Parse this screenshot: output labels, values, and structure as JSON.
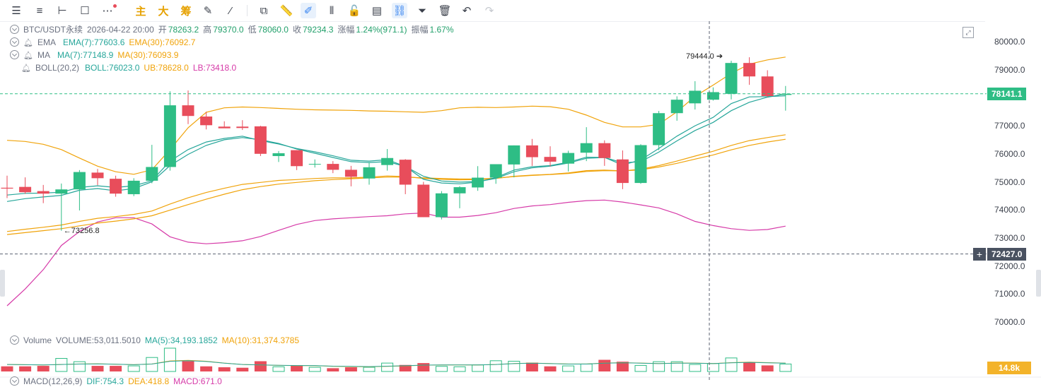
{
  "toolbar": {
    "cn1": "主",
    "cn2": "大",
    "cn3": "筹"
  },
  "legend": {
    "symbol": "BTC/USDT永续",
    "time": "2026-04-22 20:00",
    "open_label": "开",
    "open": "78263.2",
    "high_label": "高",
    "high": "79370.0",
    "low_label": "低",
    "low": "78060.0",
    "close_label": "收",
    "close": "79234.3",
    "change_label": "涨幅",
    "change": "1.24%(971.1)",
    "amp_label": "振幅",
    "amp": "1.67%",
    "ema_name": "EMA",
    "ema7": "EMA(7):77603.6",
    "ema30": "EMA(30):76092.7",
    "ma_name": "MA",
    "ma7": "MA(7):77148.9",
    "ma30": "MA(30):76093.9",
    "boll_name": "BOLL(20,2)",
    "boll_mid": "BOLL:76023.0",
    "boll_ub": "UB:78628.0",
    "boll_lb": "LB:73418.0",
    "vol_name": "Volume",
    "vol": "VOLUME:53,011.5010",
    "vol_ma5": "MA(5):34,193.1852",
    "vol_ma10": "MA(10):31,374.3785",
    "macd_name": "MACD(12,26,9)",
    "dif": "DIF:754.3",
    "dea": "DEA:418.8",
    "macd": "MACD:671.0"
  },
  "price_axis": [
    "80000.0",
    "79000.0",
    "78000.0",
    "77000.0",
    "76000.0",
    "75000.0",
    "74000.0",
    "73000.0",
    "72000.0",
    "71000.0",
    "70000.0"
  ],
  "annotations": {
    "high_marker": "79444.0",
    "low_marker": "73256.8"
  },
  "tags": {
    "last_price": "78141.1",
    "cursor_price": "72427.0",
    "cursor_plus": "+",
    "volume_tag": "14.8k"
  },
  "colors": {
    "up": "#2ebd85",
    "down": "#e84d5b",
    "ema7": "#26a69a",
    "ema30": "#f0a30a",
    "boll_lb": "#d63aa8",
    "accent": "#2f7ff0"
  },
  "chart_data": {
    "type": "candlestick",
    "interval": "4h",
    "candles": [
      {
        "o": 74790,
        "h": 75220,
        "l": 74420,
        "c": 74760
      },
      {
        "o": 74820,
        "h": 75160,
        "l": 74570,
        "c": 74630
      },
      {
        "o": 74670,
        "h": 74890,
        "l": 74240,
        "c": 74580
      },
      {
        "o": 74580,
        "h": 74940,
        "l": 73257,
        "c": 74730
      },
      {
        "o": 74730,
        "h": 75420,
        "l": 73980,
        "c": 75350
      },
      {
        "o": 75330,
        "h": 75460,
        "l": 74880,
        "c": 75130
      },
      {
        "o": 75110,
        "h": 75220,
        "l": 74470,
        "c": 74580
      },
      {
        "o": 74560,
        "h": 75130,
        "l": 74490,
        "c": 75040
      },
      {
        "o": 75040,
        "h": 76320,
        "l": 74950,
        "c": 75530
      },
      {
        "o": 75530,
        "h": 78230,
        "l": 75400,
        "c": 77730
      },
      {
        "o": 77730,
        "h": 78260,
        "l": 77060,
        "c": 77350
      },
      {
        "o": 77330,
        "h": 77500,
        "l": 76870,
        "c": 77020
      },
      {
        "o": 76970,
        "h": 77160,
        "l": 76920,
        "c": 76910
      },
      {
        "o": 76970,
        "h": 77200,
        "l": 76850,
        "c": 76920
      },
      {
        "o": 76980,
        "h": 77000,
        "l": 75920,
        "c": 76000
      },
      {
        "o": 75920,
        "h": 76100,
        "l": 75710,
        "c": 76020
      },
      {
        "o": 76130,
        "h": 76130,
        "l": 75420,
        "c": 75560
      },
      {
        "o": 75620,
        "h": 75800,
        "l": 75510,
        "c": 75640
      },
      {
        "o": 75640,
        "h": 75740,
        "l": 75310,
        "c": 75430
      },
      {
        "o": 75430,
        "h": 75570,
        "l": 74840,
        "c": 75180
      },
      {
        "o": 75120,
        "h": 75700,
        "l": 74900,
        "c": 75520
      },
      {
        "o": 75600,
        "h": 76170,
        "l": 75400,
        "c": 75850
      },
      {
        "o": 75790,
        "h": 75810,
        "l": 74560,
        "c": 74900
      },
      {
        "o": 74900,
        "h": 75000,
        "l": 73740,
        "c": 73740
      },
      {
        "o": 73740,
        "h": 74670,
        "l": 73660,
        "c": 74590
      },
      {
        "o": 74590,
        "h": 74850,
        "l": 74060,
        "c": 74810
      },
      {
        "o": 74800,
        "h": 75560,
        "l": 74680,
        "c": 75150
      },
      {
        "o": 75150,
        "h": 75600,
        "l": 74930,
        "c": 75630
      },
      {
        "o": 75620,
        "h": 76300,
        "l": 75160,
        "c": 76300
      },
      {
        "o": 76300,
        "h": 76530,
        "l": 75570,
        "c": 75880
      },
      {
        "o": 75890,
        "h": 76270,
        "l": 75550,
        "c": 75720
      },
      {
        "o": 75650,
        "h": 76110,
        "l": 75370,
        "c": 76030
      },
      {
        "o": 76040,
        "h": 76950,
        "l": 75740,
        "c": 76380
      },
      {
        "o": 76380,
        "h": 76480,
        "l": 75570,
        "c": 75850
      },
      {
        "o": 75800,
        "h": 76120,
        "l": 74740,
        "c": 74960
      },
      {
        "o": 74960,
        "h": 76340,
        "l": 74930,
        "c": 76310
      },
      {
        "o": 76310,
        "h": 77530,
        "l": 76130,
        "c": 77450
      },
      {
        "o": 77450,
        "h": 78050,
        "l": 77180,
        "c": 77930
      },
      {
        "o": 77800,
        "h": 78590,
        "l": 77580,
        "c": 78250
      },
      {
        "o": 77930,
        "h": 78370,
        "l": 77900,
        "c": 78200
      },
      {
        "o": 78140,
        "h": 79320,
        "l": 77940,
        "c": 79240
      },
      {
        "o": 79240,
        "h": 79444,
        "l": 78460,
        "c": 78760
      },
      {
        "o": 78760,
        "h": 78980,
        "l": 78020,
        "c": 78060
      },
      {
        "o": 78100,
        "h": 78420,
        "l": 77540,
        "c": 78141
      }
    ],
    "ema7": [
      74530,
      74590,
      74600,
      74630,
      74800,
      74860,
      74800,
      74860,
      75040,
      75740,
      76150,
      76420,
      76550,
      76630,
      76470,
      76350,
      76190,
      76070,
      75930,
      75770,
      75740,
      75790,
      75550,
      75090,
      74960,
      74930,
      74990,
      75150,
      75420,
      75540,
      75580,
      75700,
      75880,
      75870,
      75600,
      75780,
      76190,
      76630,
      77000,
      77300,
      77790,
      78030,
      78040,
      78070
    ],
    "ema30": [
      73230,
      73310,
      73380,
      73460,
      73590,
      73700,
      73760,
      73840,
      73960,
      74210,
      74430,
      74620,
      74770,
      74910,
      74980,
      75050,
      75080,
      75120,
      75140,
      75140,
      75170,
      75210,
      75190,
      75120,
      75090,
      75070,
      75080,
      75120,
      75200,
      75240,
      75270,
      75320,
      75400,
      75420,
      75390,
      75450,
      75580,
      75740,
      75920,
      76090,
      76300,
      76470,
      76580,
      76680
    ],
    "ma7": [
      74300,
      74400,
      74460,
      74520,
      74700,
      74760,
      74680,
      74760,
      75000,
      75580,
      75980,
      76300,
      76500,
      76580,
      76500,
      76370,
      76170,
      76020,
      75870,
      75720,
      75690,
      75720,
      75550,
      75200,
      75030,
      74990,
      75010,
      75120,
      75360,
      75500,
      75560,
      75670,
      75840,
      75870,
      75680,
      75720,
      76060,
      76460,
      76830,
      77120,
      77540,
      77840,
      78020,
      78140
    ],
    "ma30": [
      73120,
      73190,
      73260,
      73330,
      73430,
      73530,
      73600,
      73680,
      73790,
      73990,
      74190,
      74380,
      74560,
      74720,
      74830,
      74920,
      74980,
      75040,
      75080,
      75110,
      75140,
      75170,
      75170,
      75140,
      75120,
      75100,
      75100,
      75130,
      75190,
      75230,
      75260,
      75300,
      75370,
      75400,
      75390,
      75430,
      75530,
      75660,
      75810,
      75960,
      76140,
      76300,
      76420,
      76520
    ],
    "boll_ub": [
      76480,
      76440,
      76340,
      76150,
      75850,
      75560,
      75360,
      75270,
      75430,
      76150,
      76930,
      77480,
      77640,
      77670,
      77650,
      77620,
      77590,
      77570,
      77560,
      77550,
      77530,
      77520,
      77500,
      77480,
      77540,
      77640,
      77660,
      77650,
      77670,
      77700,
      77680,
      77590,
      77380,
      77120,
      76960,
      76960,
      77050,
      77500,
      78050,
      78450,
      78870,
      79200,
      79350,
      79450
    ],
    "boll_lb": [
      70580,
      71180,
      71870,
      72730,
      73230,
      73570,
      73720,
      73720,
      73500,
      73040,
      72850,
      72790,
      72830,
      72900,
      73050,
      73270,
      73480,
      73620,
      73680,
      73720,
      73760,
      73790,
      73860,
      73890,
      73740,
      73740,
      73800,
      73900,
      74050,
      74140,
      74190,
      74270,
      74330,
      74350,
      74280,
      74180,
      74070,
      73860,
      73590,
      73440,
      73330,
      73270,
      73300,
      73420
    ],
    "volume": [
      {
        "v": 0.22,
        "up": false
      },
      {
        "v": 0.22,
        "up": false
      },
      {
        "v": 0.24,
        "up": false
      },
      {
        "v": 0.56,
        "up": true
      },
      {
        "v": 0.42,
        "up": true
      },
      {
        "v": 0.24,
        "up": false
      },
      {
        "v": 0.24,
        "up": false
      },
      {
        "v": 0.24,
        "up": true
      },
      {
        "v": 0.6,
        "up": true
      },
      {
        "v": 1.0,
        "up": true
      },
      {
        "v": 0.44,
        "up": false
      },
      {
        "v": 0.22,
        "up": false
      },
      {
        "v": 0.18,
        "up": false
      },
      {
        "v": 0.16,
        "up": false
      },
      {
        "v": 0.44,
        "up": false
      },
      {
        "v": 0.2,
        "up": true
      },
      {
        "v": 0.26,
        "up": false
      },
      {
        "v": 0.18,
        "up": true
      },
      {
        "v": 0.14,
        "up": false
      },
      {
        "v": 0.18,
        "up": false
      },
      {
        "v": 0.18,
        "up": true
      },
      {
        "v": 0.36,
        "up": true
      },
      {
        "v": 0.28,
        "up": false
      },
      {
        "v": 0.36,
        "up": false
      },
      {
        "v": 0.22,
        "up": true
      },
      {
        "v": 0.2,
        "up": true
      },
      {
        "v": 0.28,
        "up": true
      },
      {
        "v": 0.46,
        "up": true
      },
      {
        "v": 0.44,
        "up": true
      },
      {
        "v": 0.38,
        "up": false
      },
      {
        "v": 0.22,
        "up": false
      },
      {
        "v": 0.24,
        "up": true
      },
      {
        "v": 0.32,
        "up": true
      },
      {
        "v": 0.5,
        "up": false
      },
      {
        "v": 0.42,
        "up": false
      },
      {
        "v": 0.26,
        "up": true
      },
      {
        "v": 0.42,
        "up": true
      },
      {
        "v": 0.42,
        "up": true
      },
      {
        "v": 0.3,
        "up": true
      },
      {
        "v": 0.34,
        "up": true
      },
      {
        "v": 0.58,
        "up": true
      },
      {
        "v": 0.38,
        "up": false
      },
      {
        "v": 0.26,
        "up": false
      },
      {
        "v": 0.32,
        "up": true
      }
    ],
    "ylim": [
      69500,
      80500
    ]
  }
}
